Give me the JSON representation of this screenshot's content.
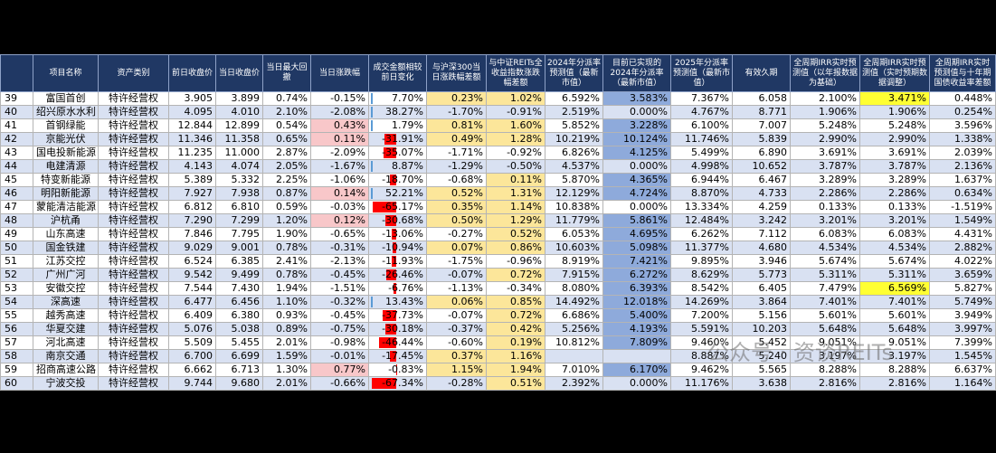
{
  "headers": [
    "",
    "项目名称",
    "资产类别",
    "前日收盘价",
    "当日收盘价",
    "当日最大回撤",
    "当日涨跌幅",
    "成交金额相较前日变化",
    "与沪深300当日涨跌幅差额",
    "与中证REITs全收益指数涨跌幅差额",
    "2024年分派率预测值（最新市值）",
    "目前已实现的2024年分派率（最新市值）",
    "2025年分派率预测值（最新市值）",
    "有效久期",
    "全周期IRR实时预测值（以年报数据为基础）",
    "全周期IRR实时预测值（实时预期数据调整）",
    "全周期IRR实时预测值与十年期国债收益率差额"
  ],
  "rows": [
    {
      "id": "39",
      "name": "富国首创",
      "type": "特许经营权",
      "prev": "3.905",
      "close": "3.899",
      "dd": "0.74%",
      "chg": "-0.15%",
      "vol": "7.70%",
      "hs300": "0.23%",
      "reits": "1.02%",
      "d24": "6.592%",
      "a24": "3.583%",
      "d25": "7.367%",
      "dur": "6.058",
      "irr1": "2.100%",
      "irr2": "3.471%",
      "spread": "0.448%"
    },
    {
      "id": "40",
      "name": "绍兴原水水利",
      "type": "特许经营权",
      "prev": "4.095",
      "close": "4.010",
      "dd": "2.10%",
      "chg": "-2.08%",
      "vol": "38.27%",
      "hs300": "-1.70%",
      "reits": "-0.91%",
      "d24": "2.519%",
      "a24": "0.000%",
      "d25": "4.767%",
      "dur": "8.771",
      "irr1": "1.906%",
      "irr2": "1.906%",
      "spread": "0.254%"
    },
    {
      "id": "41",
      "name": "首钢绿能",
      "type": "特许经营权",
      "prev": "12.844",
      "close": "12.899",
      "dd": "0.54%",
      "chg": "0.43%",
      "vol": "1.79%",
      "hs300": "0.81%",
      "reits": "1.60%",
      "d24": "5.852%",
      "a24": "3.228%",
      "d25": "6.100%",
      "dur": "7.007",
      "irr1": "5.248%",
      "irr2": "5.248%",
      "spread": "3.596%"
    },
    {
      "id": "42",
      "name": "京能光伏",
      "type": "特许经营权",
      "prev": "11.346",
      "close": "11.358",
      "dd": "0.65%",
      "chg": "0.11%",
      "vol": "-31.91%",
      "hs300": "0.49%",
      "reits": "1.28%",
      "d24": "10.219%",
      "a24": "10.124%",
      "d25": "11.746%",
      "dur": "5.839",
      "irr1": "2.990%",
      "irr2": "2.990%",
      "spread": "1.338%"
    },
    {
      "id": "43",
      "name": "国电投新能源",
      "type": "特许经营权",
      "prev": "11.235",
      "close": "11.000",
      "dd": "2.87%",
      "chg": "-2.09%",
      "vol": "-35.07%",
      "hs300": "-1.71%",
      "reits": "-0.92%",
      "d24": "6.826%",
      "a24": "4.125%",
      "d25": "5.499%",
      "dur": "6.890",
      "irr1": "3.691%",
      "irr2": "3.691%",
      "spread": "2.039%"
    },
    {
      "id": "44",
      "name": "电建清源",
      "type": "特许经营权",
      "prev": "4.143",
      "close": "4.074",
      "dd": "2.05%",
      "chg": "-1.67%",
      "vol": "8.87%",
      "hs300": "-1.29%",
      "reits": "-0.50%",
      "d24": "4.537%",
      "a24": "0.000%",
      "d25": "4.998%",
      "dur": "10.652",
      "irr1": "3.787%",
      "irr2": "3.787%",
      "spread": "2.136%"
    },
    {
      "id": "45",
      "name": "特变新能源",
      "type": "特许经营权",
      "prev": "5.389",
      "close": "5.332",
      "dd": "2.25%",
      "chg": "-1.06%",
      "vol": "-18.70%",
      "hs300": "-0.68%",
      "reits": "0.11%",
      "d24": "5.870%",
      "a24": "4.365%",
      "d25": "6.944%",
      "dur": "6.467",
      "irr1": "3.289%",
      "irr2": "3.289%",
      "spread": "1.637%"
    },
    {
      "id": "46",
      "name": "明阳新能源",
      "type": "特许经营权",
      "prev": "7.927",
      "close": "7.938",
      "dd": "0.87%",
      "chg": "0.14%",
      "vol": "52.21%",
      "hs300": "0.52%",
      "reits": "1.31%",
      "d24": "12.129%",
      "a24": "4.724%",
      "d25": "8.870%",
      "dur": "4.733",
      "irr1": "2.286%",
      "irr2": "2.286%",
      "spread": "0.634%"
    },
    {
      "id": "47",
      "name": "蒙能清洁能源",
      "type": "特许经营权",
      "prev": "6.812",
      "close": "6.810",
      "dd": "0.59%",
      "chg": "-0.03%",
      "vol": "-65.17%",
      "hs300": "0.35%",
      "reits": "1.14%",
      "d24": "10.838%",
      "a24": "0.000%",
      "d25": "13.334%",
      "dur": "4.259",
      "irr1": "0.133%",
      "irr2": "0.133%",
      "spread": "-1.519%"
    },
    {
      "id": "48",
      "name": "沪杭甬",
      "type": "特许经营权",
      "prev": "7.290",
      "close": "7.299",
      "dd": "1.20%",
      "chg": "0.12%",
      "vol": "-30.68%",
      "hs300": "0.50%",
      "reits": "1.29%",
      "d24": "11.779%",
      "a24": "5.861%",
      "d25": "12.484%",
      "dur": "3.242",
      "irr1": "3.201%",
      "irr2": "3.201%",
      "spread": "1.549%"
    },
    {
      "id": "49",
      "name": "山东高速",
      "type": "特许经营权",
      "prev": "7.846",
      "close": "7.795",
      "dd": "1.90%",
      "chg": "-0.65%",
      "vol": "-13.06%",
      "hs300": "-0.27%",
      "reits": "0.52%",
      "d24": "6.053%",
      "a24": "4.695%",
      "d25": "6.262%",
      "dur": "7.112",
      "irr1": "6.083%",
      "irr2": "6.083%",
      "spread": "4.431%"
    },
    {
      "id": "50",
      "name": "国金铁建",
      "type": "特许经营权",
      "prev": "9.029",
      "close": "9.001",
      "dd": "0.78%",
      "chg": "-0.31%",
      "vol": "-10.94%",
      "hs300": "0.07%",
      "reits": "0.86%",
      "d24": "10.603%",
      "a24": "5.098%",
      "d25": "11.377%",
      "dur": "4.680",
      "irr1": "4.534%",
      "irr2": "4.534%",
      "spread": "2.882%"
    },
    {
      "id": "51",
      "name": "江苏交控",
      "type": "特许经营权",
      "prev": "6.524",
      "close": "6.385",
      "dd": "2.41%",
      "chg": "-2.13%",
      "vol": "-11.93%",
      "hs300": "-1.75%",
      "reits": "-0.96%",
      "d24": "8.919%",
      "a24": "7.421%",
      "d25": "9.895%",
      "dur": "3.946",
      "irr1": "5.674%",
      "irr2": "5.674%",
      "spread": "4.022%"
    },
    {
      "id": "52",
      "name": "广州广河",
      "type": "特许经营权",
      "prev": "9.542",
      "close": "9.499",
      "dd": "0.78%",
      "chg": "-0.45%",
      "vol": "-26.46%",
      "hs300": "-0.07%",
      "reits": "0.72%",
      "d24": "7.915%",
      "a24": "6.272%",
      "d25": "8.629%",
      "dur": "5.773",
      "irr1": "5.311%",
      "irr2": "5.311%",
      "spread": "3.659%"
    },
    {
      "id": "53",
      "name": "安徽交控",
      "type": "特许经营权",
      "prev": "7.544",
      "close": "7.430",
      "dd": "1.94%",
      "chg": "-1.51%",
      "vol": "-6.76%",
      "hs300": "-1.13%",
      "reits": "-0.34%",
      "d24": "8.080%",
      "a24": "6.393%",
      "d25": "8.542%",
      "dur": "6.405",
      "irr1": "7.479%",
      "irr2": "6.569%",
      "spread": "5.827%"
    },
    {
      "id": "54",
      "name": "深高速",
      "type": "特许经营权",
      "prev": "6.477",
      "close": "6.456",
      "dd": "1.10%",
      "chg": "-0.32%",
      "vol": "13.43%",
      "hs300": "0.06%",
      "reits": "0.85%",
      "d24": "14.492%",
      "a24": "12.018%",
      "d25": "14.269%",
      "dur": "3.864",
      "irr1": "7.401%",
      "irr2": "7.401%",
      "spread": "5.749%"
    },
    {
      "id": "55",
      "name": "越秀高速",
      "type": "特许经营权",
      "prev": "6.409",
      "close": "6.380",
      "dd": "0.93%",
      "chg": "-0.45%",
      "vol": "-37.73%",
      "hs300": "-0.07%",
      "reits": "0.72%",
      "d24": "6.686%",
      "a24": "5.400%",
      "d25": "7.200%",
      "dur": "5.156",
      "irr1": "5.601%",
      "irr2": "5.601%",
      "spread": "3.949%"
    },
    {
      "id": "56",
      "name": "华夏交建",
      "type": "特许经营权",
      "prev": "5.076",
      "close": "5.038",
      "dd": "0.89%",
      "chg": "-0.75%",
      "vol": "-30.18%",
      "hs300": "-0.37%",
      "reits": "0.42%",
      "d24": "5.256%",
      "a24": "4.193%",
      "d25": "5.591%",
      "dur": "10.203",
      "irr1": "5.648%",
      "irr2": "5.648%",
      "spread": "3.997%"
    },
    {
      "id": "57",
      "name": "河北高速",
      "type": "特许经营权",
      "prev": "5.509",
      "close": "5.455",
      "dd": "2.01%",
      "chg": "-0.98%",
      "vol": "-46.44%",
      "hs300": "-0.60%",
      "reits": "0.19%",
      "d24": "10.812%",
      "a24": "7.809%",
      "d25": "9.460%",
      "dur": "5.452",
      "irr1": "9.051%",
      "irr2": "9.051%",
      "spread": "7.399%"
    },
    {
      "id": "58",
      "name": "南京交通",
      "type": "特许经营权",
      "prev": "6.700",
      "close": "6.699",
      "dd": "1.59%",
      "chg": "-0.01%",
      "vol": "-17.45%",
      "hs300": "0.37%",
      "reits": "1.16%",
      "d24": "",
      "a24": "",
      "d25": "8.887%",
      "dur": "5.240",
      "irr1": "3.197%",
      "irr2": "3.197%",
      "spread": "1.545%"
    },
    {
      "id": "59",
      "name": "招商高速公路",
      "type": "特许经营权",
      "prev": "6.662",
      "close": "6.713",
      "dd": "1.30%",
      "chg": "0.77%",
      "vol": "-0.83%",
      "hs300": "1.15%",
      "reits": "1.94%",
      "d24": "7.010%",
      "a24": "6.170%",
      "d25": "9.462%",
      "dur": "5.565",
      "irr1": "8.288%",
      "irr2": "8.288%",
      "spread": "6.637%"
    },
    {
      "id": "60",
      "name": "宁波交投",
      "type": "特许经营权",
      "prev": "9.744",
      "close": "9.680",
      "dd": "2.01%",
      "chg": "-0.66%",
      "vol": "-67.34%",
      "hs300": "-0.28%",
      "reits": "0.51%",
      "d24": "2.392%",
      "a24": "0.000%",
      "d25": "11.176%",
      "dur": "3.638",
      "irr1": "2.816%",
      "irr2": "2.816%",
      "spread": "1.164%"
    }
  ],
  "highlights": {
    "irr2_yellow": [
      "39",
      "53"
    ]
  },
  "colors": {
    "header_bg": "#203864",
    "alt_row": "#d9e1f2",
    "pos_chg": "#f8c7c9",
    "yellow": "#fce69a",
    "blue": "#8eaadb",
    "highlight": "#ffff33",
    "neg_bar": "#ff0000",
    "pos_bar": "#5b9bd5"
  },
  "watermark": "公众号 · 资谈REITs"
}
